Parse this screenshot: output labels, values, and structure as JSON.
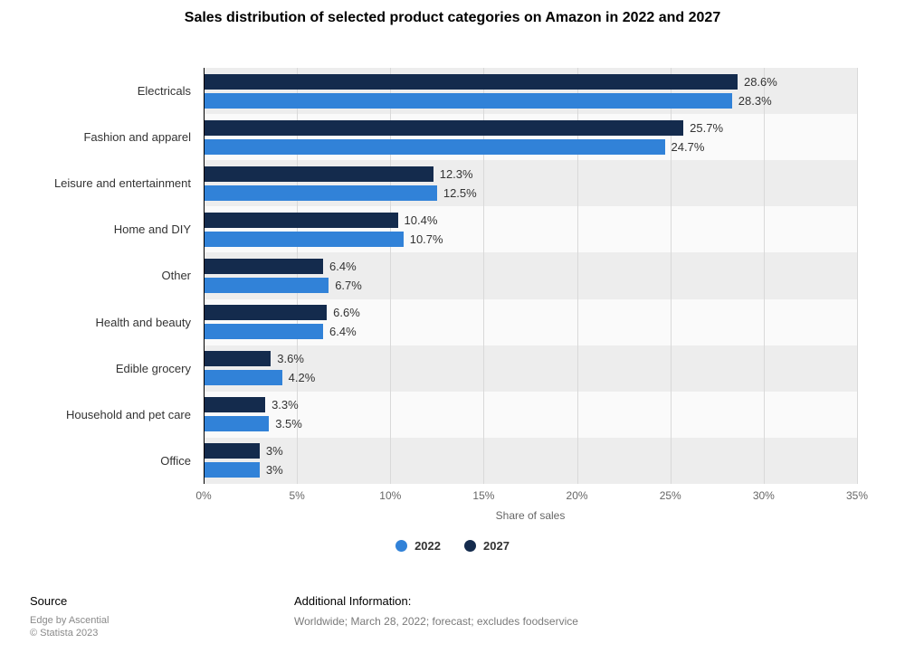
{
  "title": "Sales distribution of selected product categories on Amazon in 2022 and 2027",
  "chart_data": {
    "type": "bar",
    "orientation": "horizontal",
    "categories": [
      "Electricals",
      "Fashion and apparel",
      "Leisure and entertainment",
      "Home and DIY",
      "Other",
      "Health and beauty",
      "Edible grocery",
      "Household and pet care",
      "Office"
    ],
    "series": [
      {
        "name": "2027",
        "color": "#142b4d",
        "values": [
          28.6,
          25.7,
          12.3,
          10.4,
          6.4,
          6.6,
          3.6,
          3.3,
          3
        ],
        "labels": [
          "28.6%",
          "25.7%",
          "12.3%",
          "10.4%",
          "6.4%",
          "6.6%",
          "3.6%",
          "3.3%",
          "3%"
        ]
      },
      {
        "name": "2022",
        "color": "#3182d8",
        "values": [
          28.3,
          24.7,
          12.5,
          10.7,
          6.7,
          6.4,
          4.2,
          3.5,
          3
        ],
        "labels": [
          "28.3%",
          "24.7%",
          "12.5%",
          "10.7%",
          "6.7%",
          "6.4%",
          "4.2%",
          "3.5%",
          "3%"
        ]
      }
    ],
    "series_display_order_note": "2027 bar drawn above 2022 bar in each category group",
    "xlabel": "Share of sales",
    "xlim": [
      0,
      35
    ],
    "ticks": [
      "0%",
      "5%",
      "10%",
      "15%",
      "20%",
      "25%",
      "30%",
      "35%"
    ],
    "grid": "vertical",
    "style": {
      "band_colors": [
        "#ededed",
        "#fafafa"
      ],
      "gridline_color": "#d9d9d9",
      "axis_line_color": "#000000"
    }
  },
  "legend": [
    {
      "label": "2022",
      "color": "#3182d8"
    },
    {
      "label": "2027",
      "color": "#142b4d"
    }
  ],
  "footer": {
    "source_label": "Source",
    "source_name": "Edge by Ascential",
    "copyright": "© Statista 2023",
    "additional_label": "Additional Information:",
    "additional_text": "Worldwide; March 28, 2022; forecast; excludes foodservice"
  }
}
